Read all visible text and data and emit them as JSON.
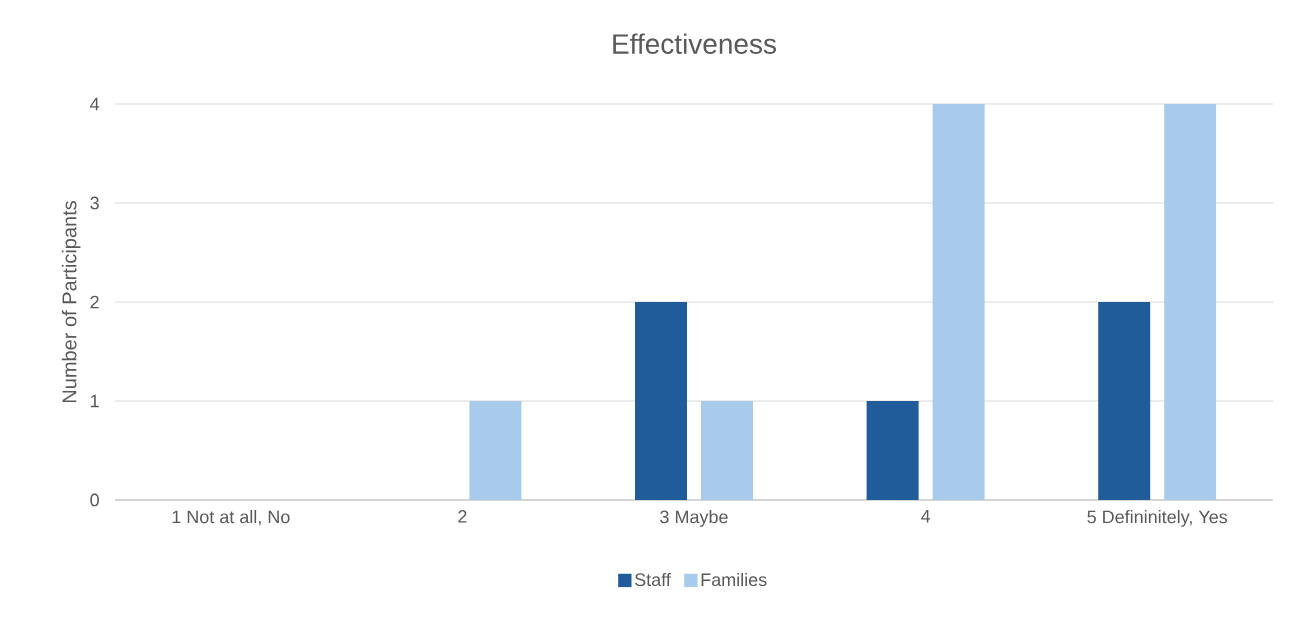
{
  "chart_data": {
    "type": "bar",
    "title": "Effectiveness",
    "ylabel": "Number of Participants",
    "categories": [
      "1 Not at all, No",
      "2",
      "3 Maybe",
      "4",
      "5 Defininitely, Yes"
    ],
    "series": [
      {
        "name": "Staff",
        "color": "#1f5c99",
        "values": [
          0,
          0,
          2,
          1,
          2
        ]
      },
      {
        "name": "Families",
        "color": "#a9cbeb",
        "values": [
          0,
          1,
          1,
          4,
          4
        ]
      }
    ],
    "ylim": [
      0,
      4
    ],
    "yticks": [
      0,
      1,
      2,
      3,
      4
    ],
    "grid": "y",
    "legend": "bottom"
  }
}
